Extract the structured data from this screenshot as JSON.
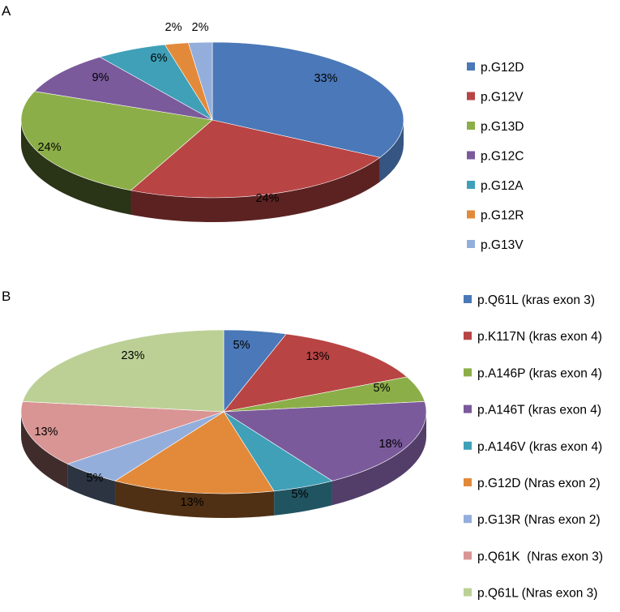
{
  "chart_data": [
    {
      "type": "pie",
      "panel_label": "A",
      "title": "",
      "start_angle_deg": 90,
      "legend_position": "right",
      "slices": [
        {
          "label": "p.G12D",
          "value": 33,
          "value_label": "33%",
          "color": "#4A78B8"
        },
        {
          "label": "p.G12V",
          "value": 24,
          "value_label": "24%",
          "color": "#B84444"
        },
        {
          "label": "p.G13D",
          "value": 24,
          "value_label": "24%",
          "color": "#8CAE48"
        },
        {
          "label": "p.G12C",
          "value": 9,
          "value_label": "9%",
          "color": "#7A5A9B"
        },
        {
          "label": "p.G12A",
          "value": 6,
          "value_label": "6%",
          "color": "#3FA0B8"
        },
        {
          "label": "p.G12R",
          "value": 2,
          "value_label": "2%",
          "color": "#E38A3A"
        },
        {
          "label": "p.G13V",
          "value": 2,
          "value_label": "2%",
          "color": "#94AEDC"
        }
      ]
    },
    {
      "type": "pie",
      "panel_label": "B",
      "title": "",
      "start_angle_deg": 90,
      "legend_position": "right",
      "slices": [
        {
          "label": "p.Q61L (kras exon 3)",
          "value": 5,
          "value_label": "5%",
          "color": "#4A78B8"
        },
        {
          "label": "p.K117N (kras exon 4)",
          "value": 13,
          "value_label": "13%",
          "color": "#B84444"
        },
        {
          "label": "p.A146P (kras exon 4)",
          "value": 5,
          "value_label": "5%",
          "color": "#8CAE48"
        },
        {
          "label": "p.A146T (kras exon 4)",
          "value": 18,
          "value_label": "18%",
          "color": "#7A5A9B"
        },
        {
          "label": "p.A146V (kras exon 4)",
          "value": 5,
          "value_label": "5%",
          "color": "#3FA0B8"
        },
        {
          "label": "p.G12D (Nras exon 2)",
          "value": 13,
          "value_label": "13%",
          "color": "#E38A3A"
        },
        {
          "label": "p.G13R (Nras exon 2)",
          "value": 5,
          "value_label": "5%",
          "color": "#94AEDC"
        },
        {
          "label": "p.Q61K  (Nras exon 3)",
          "value": 13,
          "value_label": "13%",
          "color": "#D99494"
        },
        {
          "label": "p.Q61L (Nras exon 3)",
          "value": 23,
          "value_label": "23%",
          "color": "#BCD096"
        }
      ]
    }
  ]
}
